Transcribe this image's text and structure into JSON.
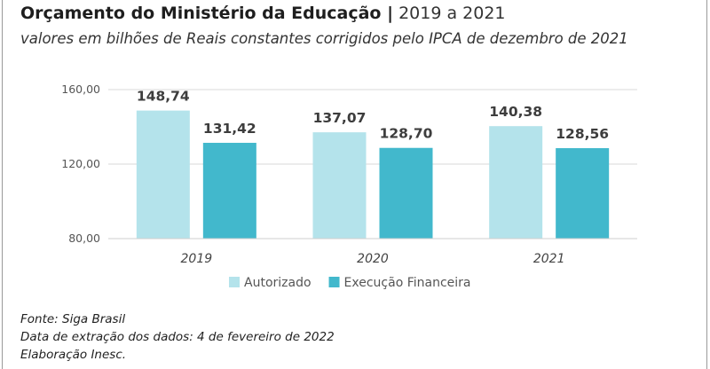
{
  "header": {
    "title_bold": "Orçamento do Ministério da Educação |",
    "title_light": "2019 a 2021",
    "subtitle": "valores em bilhões de Reais constantes corrigidos pelo IPCA de dezembro de 2021"
  },
  "chart_data": {
    "type": "bar",
    "categories": [
      "2019",
      "2020",
      "2021"
    ],
    "series": [
      {
        "name": "Autorizado",
        "values": [
          148.74,
          137.07,
          140.38
        ],
        "labels": [
          "148,74",
          "137,07",
          "140,38"
        ]
      },
      {
        "name": "Execução Financeira",
        "values": [
          131.42,
          128.7,
          128.56
        ],
        "labels": [
          "131,42",
          "128,70",
          "128,56"
        ]
      }
    ],
    "colors": [
      "#b4e3eb",
      "#42b8cc"
    ],
    "ylim": [
      80,
      160
    ],
    "yticks": [
      80,
      120,
      160
    ],
    "ytick_labels": [
      "80,00",
      "120,00",
      "160,00"
    ],
    "legend_position": "bottom-center",
    "grid": false
  },
  "footer": {
    "lines": [
      "Fonte: Siga Brasil",
      "Data de extração dos dados: 4 de fevereiro de 2022",
      "Elaboração Inesc."
    ]
  }
}
